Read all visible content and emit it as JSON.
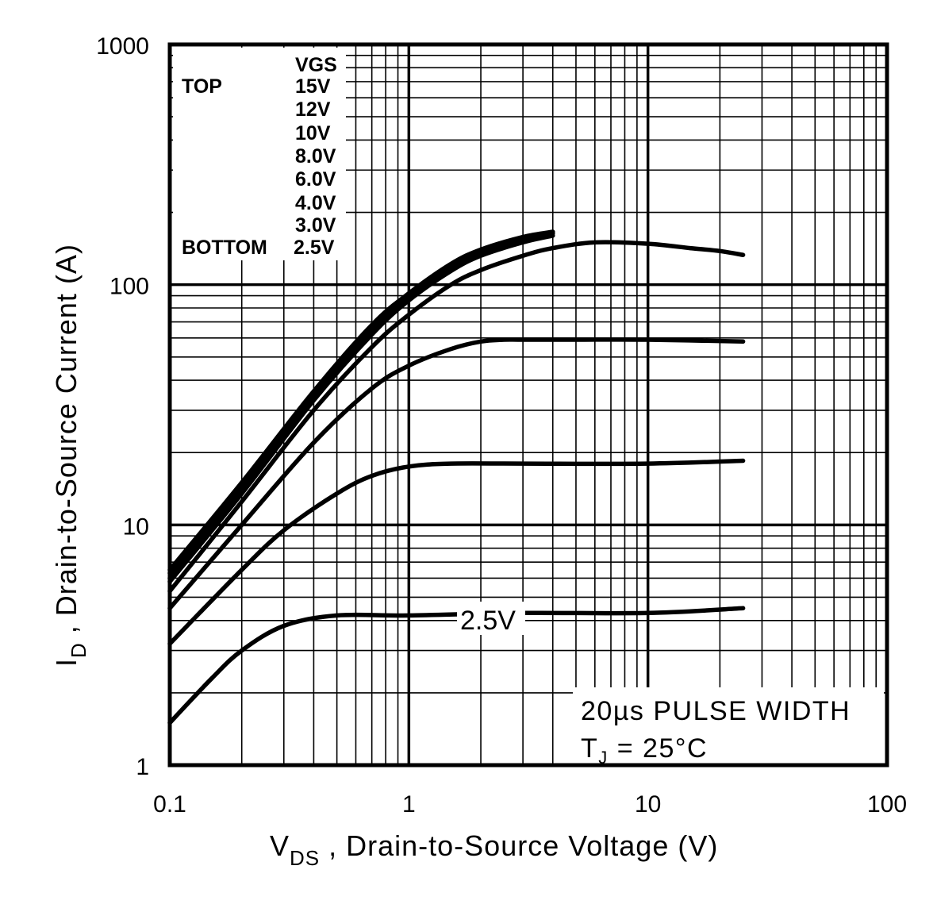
{
  "chart_data": {
    "type": "line",
    "x_scale": "log",
    "y_scale": "log",
    "xlim": [
      0.1,
      100
    ],
    "ylim": [
      1,
      1000
    ],
    "grid": true,
    "x_ticks": [
      "0.1",
      "1",
      "10",
      "100"
    ],
    "y_ticks": [
      "1",
      "10",
      "100",
      "1000"
    ],
    "xlabel_main": "V",
    "xlabel_sub": "DS",
    "xlabel_rest": " , Drain-to-Source Voltage (V)",
    "ylabel_main": "I",
    "ylabel_sub": "D",
    "ylabel_rest": " , Drain-to-Source Current (A)",
    "legend": {
      "header": "VGS",
      "top_label": "TOP",
      "bottom_label": "BOTTOM",
      "entries": [
        "15V",
        "12V",
        "10V",
        "8.0V",
        "6.0V",
        "4.0V",
        "3.0V",
        "2.5V"
      ]
    },
    "annotation": {
      "line1": "20µs PULSE WIDTH",
      "line2_main": "T",
      "line2_sub": "J",
      "line2_rest": " = 25°C"
    },
    "curve_label": "2.5V",
    "series": [
      {
        "name": "15V",
        "x": [
          0.1,
          0.2,
          0.4,
          0.7,
          1.0,
          1.5,
          2.0,
          3.0,
          4.0
        ],
        "y": [
          6.5,
          15,
          36,
          68,
          92,
          122,
          140,
          158,
          166
        ]
      },
      {
        "name": "12V",
        "x": [
          0.1,
          0.2,
          0.4,
          0.7,
          1.0,
          1.5,
          2.0,
          3.0,
          4.0
        ],
        "y": [
          6.3,
          14.5,
          35,
          66,
          90,
          120,
          138,
          156,
          165
        ]
      },
      {
        "name": "10V",
        "x": [
          0.1,
          0.2,
          0.4,
          0.7,
          1.0,
          1.5,
          2.0,
          3.0,
          4.0
        ],
        "y": [
          6.0,
          14,
          34,
          64,
          88,
          118,
          136,
          154,
          163
        ]
      },
      {
        "name": "8.0V",
        "x": [
          0.1,
          0.2,
          0.4,
          0.7,
          1.0,
          1.5,
          2.0,
          3.0,
          4.0
        ],
        "y": [
          5.8,
          13.5,
          33,
          62,
          86,
          114,
          132,
          150,
          160
        ]
      },
      {
        "name": "6.0V",
        "x": [
          0.1,
          0.2,
          0.4,
          0.7,
          1.0,
          1.5,
          2.0,
          3.0,
          4.0,
          6.0,
          10.0,
          15.0,
          20.0,
          25.0
        ],
        "y": [
          5.3,
          12.5,
          30,
          55,
          75,
          100,
          115,
          132,
          142,
          150,
          148,
          142,
          138,
          133
        ]
      },
      {
        "name": "4.0V",
        "x": [
          0.1,
          0.2,
          0.4,
          0.7,
          1.0,
          1.5,
          2.0,
          2.5,
          3.0,
          5.0,
          10.0,
          25.0
        ],
        "y": [
          4.5,
          10,
          22,
          37,
          46,
          54,
          58,
          59,
          59,
          59,
          59,
          58
        ]
      },
      {
        "name": "3.0V",
        "x": [
          0.1,
          0.2,
          0.3,
          0.5,
          0.7,
          1.0,
          1.5,
          3.0,
          10.0,
          25.0
        ],
        "y": [
          3.2,
          6.5,
          9.5,
          13.5,
          16,
          17.5,
          18,
          18,
          18,
          18.5
        ]
      },
      {
        "name": "2.5V",
        "x": [
          0.1,
          0.15,
          0.2,
          0.3,
          0.5,
          1.0,
          3.0,
          10.0,
          25.0
        ],
        "y": [
          1.5,
          2.3,
          3.0,
          3.8,
          4.2,
          4.2,
          4.3,
          4.3,
          4.5
        ]
      }
    ]
  }
}
